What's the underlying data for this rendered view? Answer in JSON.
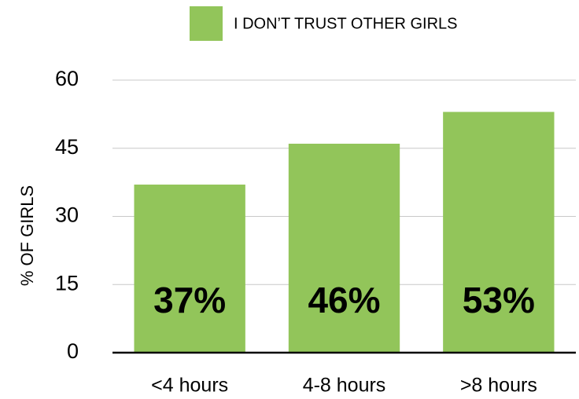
{
  "chart_data": {
    "type": "bar",
    "legend": "I DON’T TRUST OTHER GIRLS",
    "y_label": "% OF GIRLS",
    "categories": [
      "<4 hours",
      "4-8 hours",
      ">8 hours"
    ],
    "values": [
      37,
      46,
      53
    ],
    "value_labels": [
      "37%",
      "46%",
      "53%"
    ],
    "color": "#92c55a",
    "ylim": [
      0,
      60
    ],
    "yticks": [
      0,
      15,
      30,
      45,
      60
    ],
    "grid": true
  }
}
